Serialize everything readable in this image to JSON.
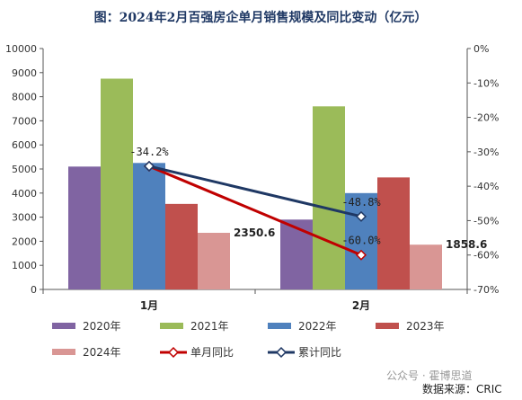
{
  "chart_data": {
    "type": "bar",
    "title": "图：2024年2月百强房企单月销售规模及同比变动（亿元）",
    "categories": [
      "1月",
      "2月"
    ],
    "ylim": [
      0,
      10000
    ],
    "yticks": [
      "0",
      "1000",
      "2000",
      "3000",
      "4000",
      "5000",
      "6000",
      "7000",
      "8000",
      "9000",
      "10000"
    ],
    "y2lim": [
      -70,
      0
    ],
    "y2ticks": [
      "0%",
      "-10%",
      "-20%",
      "-30%",
      "-40%",
      "-50%",
      "-60%",
      "-70%"
    ],
    "series": [
      {
        "name": "2020年",
        "type": "bar",
        "color": "#8064a2",
        "values": [
          5100,
          2900
        ]
      },
      {
        "name": "2021年",
        "type": "bar",
        "color": "#9bbb59",
        "values": [
          8750,
          7600
        ]
      },
      {
        "name": "2022年",
        "type": "bar",
        "color": "#4f81bd",
        "values": [
          5250,
          4000
        ]
      },
      {
        "name": "2023年",
        "type": "bar",
        "color": "#c0504d",
        "values": [
          3550,
          4650
        ]
      },
      {
        "name": "2024年",
        "type": "bar",
        "color": "#d99694",
        "values": [
          2350.6,
          1858.6
        ],
        "labels": [
          "2350.6",
          "1858.6"
        ]
      },
      {
        "name": "单月同比",
        "type": "line",
        "axis": "right",
        "color": "#c00000",
        "values": [
          -34.2,
          -60.0
        ],
        "labels": [
          "-34.2%",
          "-60.0%"
        ]
      },
      {
        "name": "累计同比",
        "type": "line",
        "axis": "right",
        "color": "#1f3864",
        "values": [
          -34.2,
          -48.8
        ],
        "labels": [
          "",
          "-48.8%"
        ]
      }
    ],
    "legend": "bottom",
    "grid": false
  },
  "footer": {
    "watermark": "公众号 · 霍博思道",
    "source": "数据来源：CRIC"
  }
}
